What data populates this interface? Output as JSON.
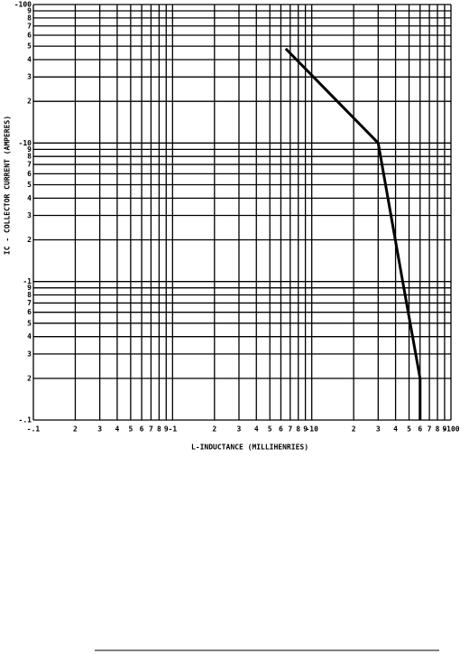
{
  "chart_data": {
    "type": "line",
    "xlabel": "L-INDUCTANCE (MILLIHENRIES)",
    "ylabel": "IC - COLLECTOR CURRENT (AMPERES)",
    "xscale": "log",
    "yscale": "log",
    "grid": true,
    "xlim": [
      -0.1,
      -100
    ],
    "ylim": [
      -0.1,
      -100
    ],
    "xticks": [
      {
        "value": -0.1,
        "label": "-.1"
      },
      {
        "value": -0.2,
        "label": "2"
      },
      {
        "value": -0.3,
        "label": "3"
      },
      {
        "value": -0.4,
        "label": "4"
      },
      {
        "value": -0.5,
        "label": "5"
      },
      {
        "value": -0.6,
        "label": "6"
      },
      {
        "value": -0.7,
        "label": "7"
      },
      {
        "value": -0.8,
        "label": "8"
      },
      {
        "value": -0.9,
        "label": "9"
      },
      -1,
      {
        "value": -2,
        "label": "2"
      },
      {
        "value": -3,
        "label": "3"
      },
      {
        "value": -4,
        "label": "4"
      },
      {
        "value": -5,
        "label": "5"
      },
      {
        "value": -6,
        "label": "6"
      },
      {
        "value": -7,
        "label": "7"
      },
      {
        "value": -8,
        "label": "8"
      },
      {
        "value": -9,
        "label": "9"
      },
      -10,
      {
        "value": -20,
        "label": "2"
      },
      {
        "value": -30,
        "label": "3"
      },
      {
        "value": -40,
        "label": "4"
      },
      {
        "value": -50,
        "label": "5"
      },
      {
        "value": -60,
        "label": "6"
      },
      {
        "value": -70,
        "label": "7"
      },
      {
        "value": -80,
        "label": "8"
      },
      {
        "value": -90,
        "label": "9"
      },
      -100
    ],
    "yticks": [
      {
        "value": -0.1,
        "label": "-.1"
      },
      {
        "value": -0.2,
        "label": "2"
      },
      {
        "value": -0.3,
        "label": "3"
      },
      {
        "value": -0.4,
        "label": "4"
      },
      {
        "value": -0.5,
        "label": "5"
      },
      {
        "value": -0.6,
        "label": "6"
      },
      {
        "value": -0.7,
        "label": "7"
      },
      {
        "value": -0.8,
        "label": "8"
      },
      {
        "value": -0.9,
        "label": "9"
      },
      -1,
      {
        "value": -2,
        "label": "2"
      },
      {
        "value": -3,
        "label": "3"
      },
      {
        "value": -4,
        "label": "4"
      },
      {
        "value": -5,
        "label": "5"
      },
      {
        "value": -6,
        "label": "6"
      },
      {
        "value": -7,
        "label": "7"
      },
      {
        "value": -8,
        "label": "8"
      },
      {
        "value": -9,
        "label": "9"
      },
      -10,
      {
        "value": -20,
        "label": "2"
      },
      {
        "value": -30,
        "label": "3"
      },
      {
        "value": -40,
        "label": "4"
      },
      {
        "value": -50,
        "label": "5"
      },
      {
        "value": -60,
        "label": "6"
      },
      {
        "value": -70,
        "label": "7"
      },
      {
        "value": -80,
        "label": "8"
      },
      {
        "value": -90,
        "label": "9"
      },
      -100
    ],
    "x": [
      -6.5,
      -30,
      -45,
      -60,
      -60
    ],
    "values": [
      -48,
      -10,
      -1,
      -0.2,
      -0.1
    ],
    "color": "#000000"
  }
}
